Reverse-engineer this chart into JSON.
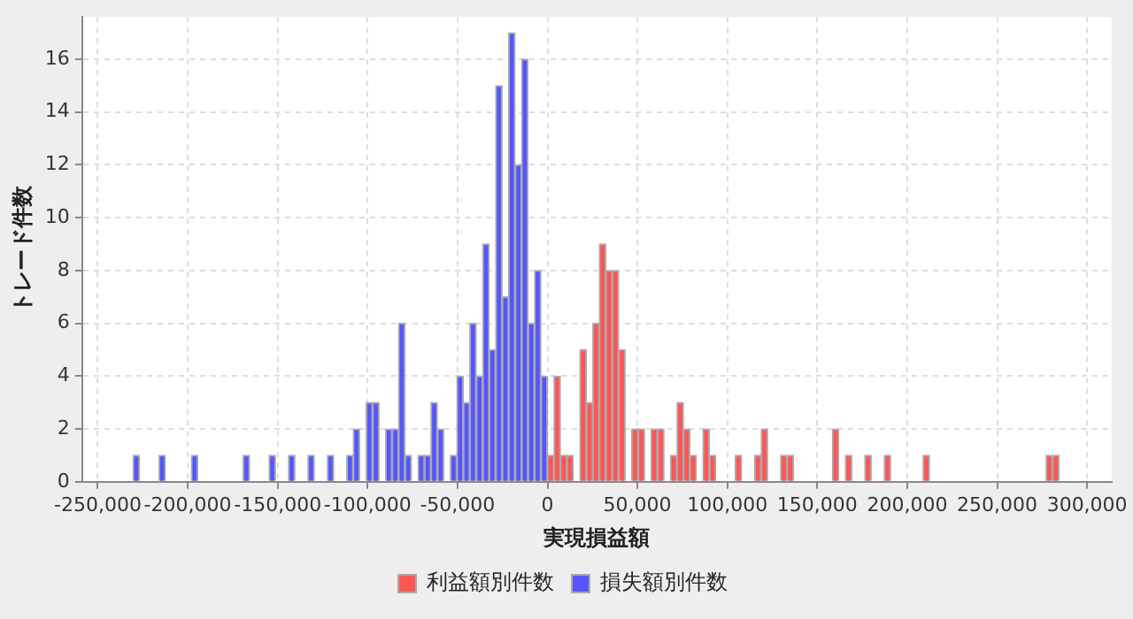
{
  "chart_data": {
    "type": "histogram",
    "xlabel": "実現損益額",
    "ylabel": "トレード件数",
    "bins": [
      -230400,
      -226800,
      -223200,
      -219600,
      -216000,
      -212400,
      -208800,
      -205200,
      -201600,
      -198000,
      -194400,
      -190800,
      -187200,
      -183600,
      -180000,
      -176400,
      -172800,
      -169200,
      -165600,
      -162000,
      -158400,
      -154800,
      -151200,
      -147600,
      -144000,
      -140400,
      -136800,
      -133200,
      -129600,
      -126000,
      -122400,
      -118800,
      -115200,
      -111600,
      -108000,
      -104400,
      -100800,
      -97200,
      -93600,
      -90000,
      -86400,
      -82800,
      -79200,
      -75600,
      -72000,
      -68400,
      -64800,
      -61200,
      -57600,
      -54000,
      -50400,
      -46800,
      -43200,
      -39600,
      -36000,
      -32400,
      -28800,
      -25200,
      -21600,
      -18000,
      -14400,
      -10800,
      -7200,
      -3600,
      0,
      3600,
      7200,
      10800,
      14400,
      18000,
      21600,
      25200,
      28800,
      32400,
      36000,
      39600,
      43200,
      46800,
      50400,
      54000,
      57600,
      61200,
      64800,
      68400,
      72000,
      75600,
      79200,
      82800,
      86400,
      90000,
      93600,
      97200,
      100800,
      104400,
      108000,
      111600,
      115200,
      118800,
      122400,
      126000,
      129600,
      133200,
      136800,
      140400,
      144000,
      147600,
      151200,
      154800,
      158400,
      162000,
      165600,
      169200,
      172800,
      176400,
      180000,
      183600,
      187200,
      190800,
      194400,
      198000,
      201600,
      205200,
      208800,
      212400,
      216000,
      219600,
      223200,
      226800,
      230400,
      234000,
      237600,
      241200,
      244800,
      248400,
      252000,
      255600,
      259200,
      262800,
      266400,
      270000,
      273600,
      277200,
      280800,
      284400
    ],
    "series": [
      {
        "name": "利益額別件数",
        "color": "#ff5555",
        "values": [
          0,
          0,
          0,
          0,
          0,
          0,
          0,
          0,
          0,
          0,
          0,
          0,
          0,
          0,
          0,
          0,
          0,
          0,
          0,
          0,
          0,
          0,
          0,
          0,
          0,
          0,
          0,
          0,
          0,
          0,
          0,
          0,
          0,
          0,
          0,
          0,
          0,
          0,
          0,
          0,
          0,
          0,
          0,
          0,
          0,
          0,
          0,
          0,
          0,
          0,
          0,
          0,
          0,
          0,
          0,
          0,
          0,
          0,
          0,
          0,
          0,
          0,
          0,
          0,
          1,
          4,
          1,
          1,
          0,
          5,
          3,
          6,
          9,
          8,
          8,
          5,
          0,
          2,
          2,
          0,
          2,
          2,
          0,
          1,
          3,
          2,
          1,
          0,
          2,
          1,
          0,
          0,
          0,
          1,
          0,
          0,
          1,
          2,
          0,
          0,
          1,
          1,
          0,
          0,
          0,
          0,
          0,
          0,
          2,
          0,
          1,
          0,
          0,
          1,
          0,
          0,
          1,
          0,
          0,
          0,
          0,
          0,
          1,
          0,
          0,
          0,
          0,
          0,
          0,
          0,
          0,
          0,
          0,
          0,
          0,
          0,
          0,
          0,
          0,
          0,
          0,
          1,
          1
        ]
      },
      {
        "name": "損失額別件数",
        "color": "#5555ff",
        "values": [
          1,
          0,
          0,
          0,
          1,
          0,
          0,
          0,
          0,
          1,
          0,
          0,
          0,
          0,
          0,
          0,
          0,
          1,
          0,
          0,
          0,
          1,
          0,
          0,
          1,
          0,
          0,
          1,
          0,
          0,
          1,
          0,
          0,
          1,
          2,
          0,
          3,
          3,
          0,
          2,
          2,
          6,
          1,
          0,
          1,
          1,
          3,
          2,
          0,
          1,
          4,
          3,
          6,
          4,
          9,
          5,
          15,
          7,
          17,
          12,
          16,
          6,
          8,
          4,
          0,
          0,
          0,
          0,
          0,
          0,
          0,
          0,
          0,
          0,
          0,
          0,
          0,
          0,
          0,
          0,
          0,
          0,
          0,
          0,
          0,
          0,
          0,
          0,
          0,
          0,
          0,
          0,
          0,
          0,
          0,
          0,
          0,
          0,
          0,
          0,
          0,
          0,
          0,
          0,
          0,
          0,
          0,
          0,
          0,
          0,
          0,
          0,
          0,
          0,
          0,
          0,
          0,
          0,
          0,
          0,
          0,
          0,
          0,
          0,
          0,
          0,
          0,
          0,
          0,
          0,
          0,
          0,
          0,
          0,
          0,
          0,
          0,
          0,
          0,
          0,
          0,
          0,
          0
        ]
      }
    ],
    "xlim": [
      -258700,
      313600
    ],
    "xticks": [
      {
        "value": -250000,
        "label": "-250,000"
      },
      {
        "value": -200000,
        "label": "-200,000"
      },
      {
        "value": -150000,
        "label": "-150,000"
      },
      {
        "value": -100000,
        "label": "-100,000"
      },
      {
        "value": -50000,
        "label": "-50,000"
      },
      0,
      {
        "value": 50000,
        "label": "50,000"
      },
      {
        "value": 100000,
        "label": "100,000"
      },
      {
        "value": 150000,
        "label": "150,000"
      },
      {
        "value": 200000,
        "label": "200,000"
      },
      {
        "value": 250000,
        "label": "250,000"
      },
      {
        "value": 300000,
        "label": "300,000"
      }
    ],
    "ylim": [
      0,
      17.6
    ],
    "yticks": [
      0,
      2,
      4,
      6,
      8,
      10,
      12,
      14,
      16
    ],
    "grid": true,
    "legend": "bottom"
  }
}
